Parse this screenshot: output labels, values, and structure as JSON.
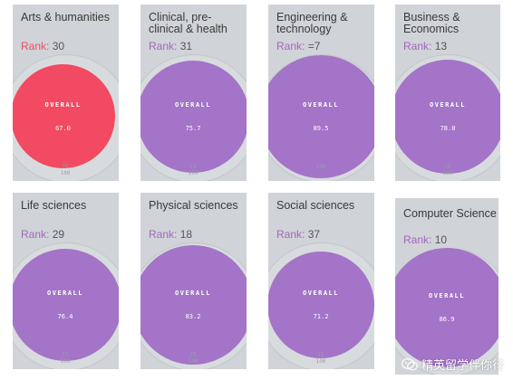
{
  "cards": [
    {
      "title": "Arts & humanities",
      "rank_label": "Rank:",
      "rank_value": "30",
      "overall_label": "OVERALL",
      "score": "67.0",
      "scale_mid": "75",
      "scale_max": "100",
      "accent": "#f24a63"
    },
    {
      "title": "Clinical, pre-\nclinical & health",
      "rank_label": "Rank:",
      "rank_value": "31",
      "overall_label": "OVERALL",
      "score": "75.7",
      "scale_mid": "75",
      "scale_max": "100",
      "accent": "#a374c8"
    },
    {
      "title": "Engineering &\ntechnology",
      "rank_label": "Rank:",
      "rank_value": "=7",
      "overall_label": "OVERALL",
      "score": "89.5",
      "scale_mid": "",
      "scale_max": "100",
      "accent": "#a374c8"
    },
    {
      "title": "Business &\nEconomics",
      "rank_label": "Rank:",
      "rank_value": "13",
      "overall_label": "OVERALL",
      "score": "78.0",
      "scale_mid": "75",
      "scale_max": "100",
      "accent": "#a374c8"
    },
    {
      "title": "Life sciences",
      "rank_label": "Rank:",
      "rank_value": "29",
      "overall_label": "OVERALL",
      "score": "76.4",
      "scale_mid": "75",
      "scale_max": "100",
      "accent": "#a374c8"
    },
    {
      "title": "Physical sciences",
      "rank_label": "Rank:",
      "rank_value": "18",
      "overall_label": "OVERALL",
      "score": "83.2",
      "scale_mid": "75",
      "scale_max": "100",
      "accent": "#a374c8"
    },
    {
      "title": "Social sciences",
      "rank_label": "Rank:",
      "rank_value": "37",
      "overall_label": "OVERALL",
      "score": "71.2",
      "scale_mid": "75",
      "scale_max": "100",
      "accent": "#a374c8"
    },
    {
      "title": "Computer Science",
      "rank_label": "Rank:",
      "rank_value": "10",
      "overall_label": "OVERALL",
      "score": "86.9",
      "scale_mid": "",
      "scale_max": "",
      "accent": "#a374c8"
    }
  ],
  "watermark": {
    "text": "精英留学伴你行",
    "icon": "wechat-icon"
  },
  "colors": {
    "card_bg": "#d0d3d7",
    "purple": "#a374c8",
    "red": "#f24a63",
    "rank_purple": "#a566c0"
  }
}
